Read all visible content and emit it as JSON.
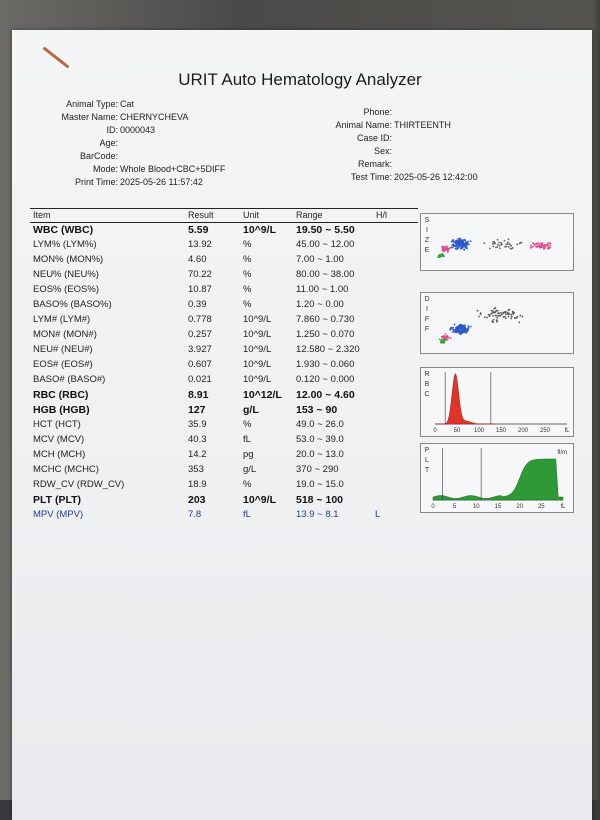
{
  "report": {
    "title": "URIT Auto Hematology Analyzer",
    "left_fields": [
      {
        "label": "Animal Type:",
        "value": "Cat"
      },
      {
        "label": "Master Name:",
        "value": "CHERNYCHEVA"
      },
      {
        "label": "ID:",
        "value": "0000043"
      },
      {
        "label": "Age:",
        "value": ""
      },
      {
        "label": "BarCode:",
        "value": ""
      },
      {
        "label": "Mode:",
        "value": "Whole Blood+CBC+5DIFF"
      },
      {
        "label": "Print Time:",
        "value": "2025-05-26  11:57:42"
      }
    ],
    "right_fields": [
      {
        "label": "Phone:",
        "value": ""
      },
      {
        "label": "Animal Name:",
        "value": "THIRTEENTH"
      },
      {
        "label": "Case ID:",
        "value": ""
      },
      {
        "label": "Sex:",
        "value": ""
      },
      {
        "label": "Remark:",
        "value": ""
      },
      {
        "label": "Test Time:",
        "value": "2025-05-26  12:42:00"
      }
    ],
    "table_header": {
      "item": "Item",
      "result": "Result",
      "unit": "Unit",
      "range": "Range",
      "flag": "H/l"
    },
    "rows": [
      {
        "item": "WBC (WBC)",
        "result": "5.59",
        "unit": "10^9/L",
        "range": "19.50 ~ 5.50",
        "flag": "",
        "style": "bold"
      },
      {
        "item": "LYM% (LYM%)",
        "result": "13.92",
        "unit": "%",
        "range": "45.00 ~ 12.00",
        "flag": "",
        "style": ""
      },
      {
        "item": "MON% (MON%)",
        "result": "4.60",
        "unit": "%",
        "range": "7.00 ~ 1.00",
        "flag": "",
        "style": ""
      },
      {
        "item": "NEU% (NEU%)",
        "result": "70.22",
        "unit": "%",
        "range": "80.00 ~ 38.00",
        "flag": "",
        "style": ""
      },
      {
        "item": "EOS% (EOS%)",
        "result": "10.87",
        "unit": "%",
        "range": "11.00 ~ 1.00",
        "flag": "",
        "style": ""
      },
      {
        "item": "BASO% (BASO%)",
        "result": "0.39",
        "unit": "%",
        "range": "1.20 ~ 0.00",
        "flag": "",
        "style": ""
      },
      {
        "item": "LYM# (LYM#)",
        "result": "0.778",
        "unit": "10^9/L",
        "range": "7.860 ~ 0.730",
        "flag": "",
        "style": ""
      },
      {
        "item": "MON# (MON#)",
        "result": "0.257",
        "unit": "10^9/L",
        "range": "1.250 ~ 0.070",
        "flag": "",
        "style": ""
      },
      {
        "item": "NEU# (NEU#)",
        "result": "3.927",
        "unit": "10^9/L",
        "range": "12.580 ~ 2.320",
        "flag": "",
        "style": ""
      },
      {
        "item": "EOS# (EOS#)",
        "result": "0.607",
        "unit": "10^9/L",
        "range": "1.930 ~ 0.060",
        "flag": "",
        "style": ""
      },
      {
        "item": "BASO# (BASO#)",
        "result": "0.021",
        "unit": "10^9/L",
        "range": "0.120 ~ 0.000",
        "flag": "",
        "style": ""
      },
      {
        "item": "RBC (RBC)",
        "result": "8.91",
        "unit": "10^12/L",
        "range": "12.00 ~ 4.60",
        "flag": "",
        "style": "bold"
      },
      {
        "item": "HGB (HGB)",
        "result": "127",
        "unit": "g/L",
        "range": "153 ~ 90",
        "flag": "",
        "style": "bold"
      },
      {
        "item": "HCT (HCT)",
        "result": "35.9",
        "unit": "%",
        "range": "49.0 ~ 26.0",
        "flag": "",
        "style": ""
      },
      {
        "item": "MCV (MCV)",
        "result": "40.3",
        "unit": "fL",
        "range": "53.0 ~ 39.0",
        "flag": "",
        "style": ""
      },
      {
        "item": "MCH (MCH)",
        "result": "14.2",
        "unit": "pg",
        "range": "20.0 ~ 13.0",
        "flag": "",
        "style": ""
      },
      {
        "item": "MCHC (MCHC)",
        "result": "353",
        "unit": "g/L",
        "range": "370 ~ 290",
        "flag": "",
        "style": ""
      },
      {
        "item": "RDW_CV (RDW_CV)",
        "result": "18.9",
        "unit": "%",
        "range": "19.0 ~ 15.0",
        "flag": "",
        "style": ""
      },
      {
        "item": "PLT (PLT)",
        "result": "203",
        "unit": "10^9/L",
        "range": "518 ~ 100",
        "flag": "",
        "style": "bold"
      },
      {
        "item": "MPV (MPV)",
        "result": "7.8",
        "unit": "fL",
        "range": "13.9 ~ 8.1",
        "flag": "L",
        "style": "blue"
      }
    ],
    "plots": {
      "size_label": "SIZE",
      "diff_label": "DIFF",
      "rbc_label": "RBC",
      "plt_label": "PLT",
      "rbc_axis": [
        "0",
        "50",
        "100",
        "150",
        "200",
        "250",
        "fL"
      ],
      "plt_axis": [
        "0",
        "5",
        "10",
        "15",
        "20",
        "25",
        "fL"
      ],
      "plt_top_label": "fl/m"
    },
    "colors": {
      "rbc_fill": "#e0342b",
      "plt_fill": "#2f9a35",
      "scatter_blue": "#2b57c9",
      "scatter_pink": "#e04c8a",
      "scatter_green": "#3aa33a"
    }
  }
}
